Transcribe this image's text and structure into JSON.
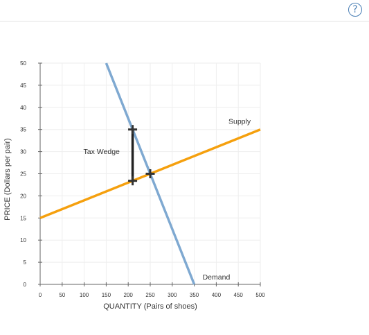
{
  "header": {
    "help_symbol": "?",
    "help_icon": "question-circle-icon",
    "accent_color": "#4a7fb5"
  },
  "chart_data": {
    "type": "line",
    "title": "",
    "xlabel": "QUANTITY (Pairs of shoes)",
    "ylabel": "PRICE (Dollars per pair)",
    "xlim": [
      0,
      500
    ],
    "ylim": [
      0,
      50
    ],
    "x_ticks": [
      0,
      50,
      100,
      150,
      200,
      250,
      300,
      350,
      400,
      450,
      500
    ],
    "y_ticks": [
      0,
      5,
      10,
      15,
      20,
      25,
      30,
      35,
      40,
      45,
      50
    ],
    "grid": true,
    "series": [
      {
        "name": "Demand",
        "color": "#7fa9d1",
        "points": [
          [
            150,
            50
          ],
          [
            350,
            0
          ]
        ]
      },
      {
        "name": "Supply",
        "color": "#f5a00e",
        "points": [
          [
            0,
            15
          ],
          [
            500,
            35
          ]
        ]
      }
    ],
    "markers": [
      [
        210,
        35
      ],
      [
        210,
        23.4
      ],
      [
        250,
        25
      ]
    ],
    "tax_wedge": {
      "label": "Tax Wedge",
      "x": 210,
      "y_top": 35,
      "y_bottom": 23.4,
      "color": "#222222"
    }
  }
}
